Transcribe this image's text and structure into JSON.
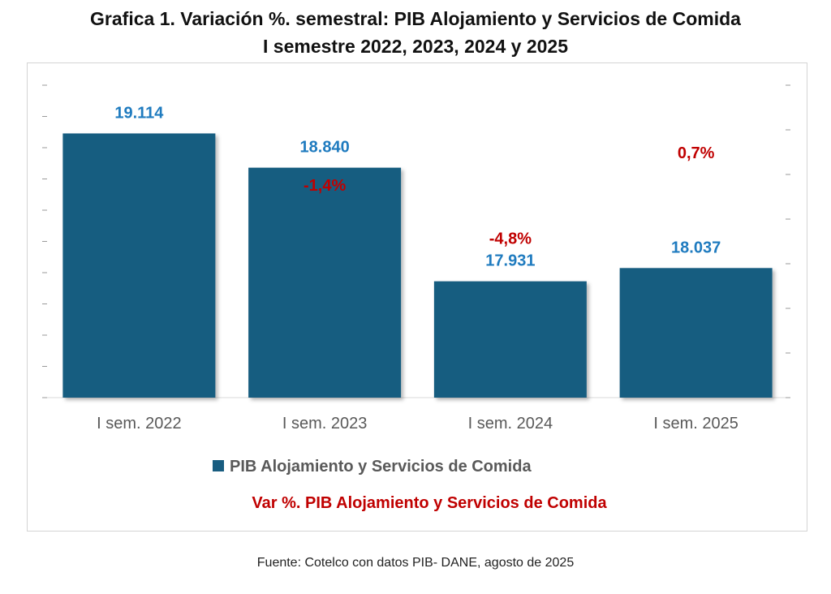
{
  "title_line1": "Grafica 1. Variación %. semestral:  PIB Alojamiento y Servicios de Comida",
  "title_line2": "I semestre 2022, 2023, 2024 y 2025",
  "source": "Fuente: Cotelco con datos PIB- DANE, agosto de 2025",
  "colors": {
    "bar": "#185d80",
    "value_label": "#1f7bbf",
    "var_label": "#c00000",
    "axis_label": "#595959",
    "legend_text": "#595959"
  },
  "chart_data": {
    "type": "bar",
    "title": "Grafica 1. Variación %. semestral:  PIB Alojamiento y Servicios de Comida — I semestre 2022, 2023, 2024 y 2025",
    "categories": [
      "I sem. 2022",
      "I sem. 2023",
      "I sem. 2024",
      "I sem. 2025"
    ],
    "series": [
      {
        "name": "PIB Alojamiento y Servicios de Comida",
        "values": [
          19114,
          18840,
          17931,
          18037
        ],
        "labels": [
          "19.114",
          "18.840",
          "17.931",
          "18.037"
        ],
        "axis": "left"
      },
      {
        "name": "Var %. PIB Alojamiento y Servicios de Comida",
        "values": [
          null,
          -1.4,
          -4.8,
          0.7
        ],
        "labels": [
          "",
          "-1,4%",
          "-4,8%",
          "0,7%"
        ],
        "axis": "right"
      }
    ],
    "ylim": [
      17000,
      19500
    ],
    "y2lim": [
      -15,
      5
    ],
    "legend_position": "bottom",
    "grid": false
  }
}
